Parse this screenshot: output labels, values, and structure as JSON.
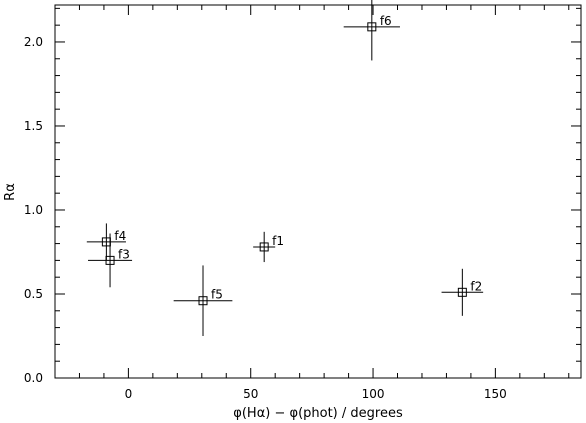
{
  "chart_data": {
    "type": "scatter",
    "xlabel": "φ(Hα) − φ(phot) / degrees",
    "ylabel": "Rα",
    "xlim": [
      -30,
      185
    ],
    "ylim": [
      0,
      2.22
    ],
    "x_ticks": [
      0,
      50,
      100,
      150
    ],
    "x_tick_labels": [
      "0",
      "50",
      "100",
      "150"
    ],
    "y_ticks": [
      0,
      0.5,
      1,
      1.5,
      2
    ],
    "y_tick_labels": [
      "0.0",
      "0.5",
      "1.0",
      "1.5",
      "2.0"
    ],
    "x_minor_step": 10,
    "y_minor_step": 0.1,
    "grid": false,
    "marker": "open-square",
    "points": [
      {
        "label": "f1",
        "x": 55.5,
        "y": 0.78,
        "xerr": 4.5,
        "yerr": 0.09
      },
      {
        "label": "f2",
        "x": 136.5,
        "y": 0.51,
        "xerr": 8.5,
        "yerr": 0.14
      },
      {
        "label": "f3",
        "x": -7.5,
        "y": 0.7,
        "xerr": 9.0,
        "yerr": 0.16
      },
      {
        "label": "f4",
        "x": -9.0,
        "y": 0.81,
        "xerr": 8.0,
        "yerr": 0.11
      },
      {
        "label": "f5",
        "x": 30.5,
        "y": 0.46,
        "xerr": 12.0,
        "yerr": 0.21
      },
      {
        "label": "f6",
        "x": 99.5,
        "y": 2.09,
        "xerr": 11.5,
        "yerr": 0.2
      }
    ]
  }
}
